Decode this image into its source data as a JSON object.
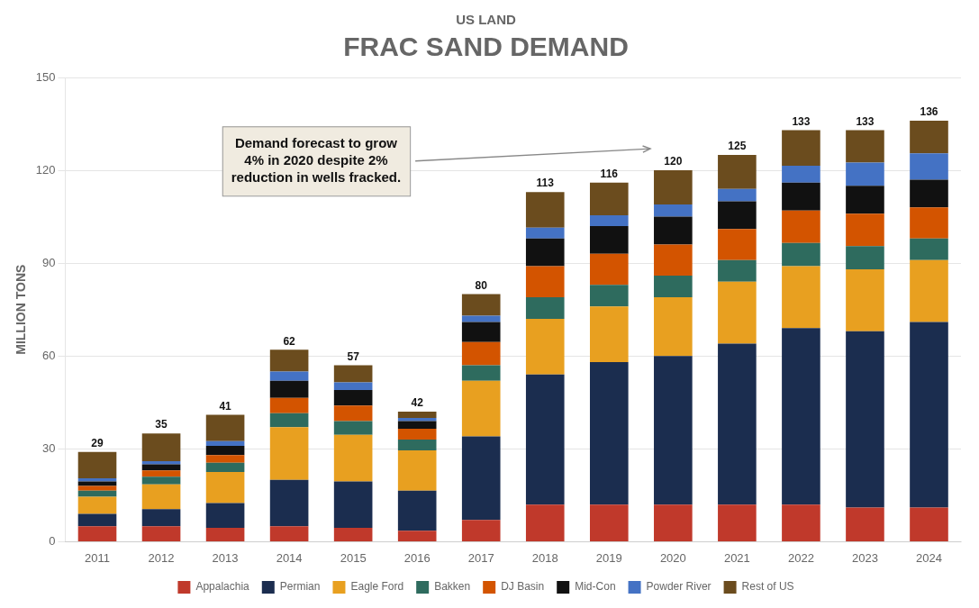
{
  "chart_data": {
    "type": "bar",
    "title": "FRAC SAND DEMAND",
    "subtitle": "US LAND",
    "y_label": "MILLION TONS",
    "categories": [
      "2011",
      "2012",
      "2013",
      "2014",
      "2015",
      "2016",
      "2017",
      "2018",
      "2019",
      "2020",
      "2021",
      "2022",
      "2023",
      "2024"
    ],
    "series": [
      {
        "name": "Appalachia",
        "color": "#c0392b",
        "values": [
          5.0,
          5.0,
          4.5,
          5.0,
          4.5,
          3.5,
          7.0,
          12.0,
          12.0,
          12.0,
          12.0,
          12.0,
          11.0,
          11.0
        ]
      },
      {
        "name": "Permian",
        "color": "#1b2d4f",
        "values": [
          4.0,
          5.5,
          8.0,
          15.0,
          15.0,
          13.0,
          27.0,
          42.0,
          46.0,
          48.0,
          52.0,
          57.0,
          57.0,
          60.0
        ]
      },
      {
        "name": "Eagle Ford",
        "color": "#e8a020",
        "values": [
          5.5,
          8.0,
          10.0,
          17.0,
          15.0,
          13.0,
          18.0,
          18.0,
          18.0,
          19.0,
          20.0,
          20.0,
          20.0,
          20.0
        ]
      },
      {
        "name": "Bakken",
        "color": "#2e6b5e",
        "values": [
          2.0,
          2.5,
          3.0,
          4.5,
          4.5,
          3.5,
          5.0,
          7.0,
          7.0,
          7.0,
          7.0,
          7.5,
          7.5,
          7.0
        ]
      },
      {
        "name": "DJ Basin",
        "color": "#d35400",
        "values": [
          1.5,
          2.0,
          2.5,
          5.0,
          5.0,
          3.5,
          7.5,
          10.0,
          10.0,
          10.0,
          10.0,
          10.5,
          10.5,
          10.0
        ]
      },
      {
        "name": "Mid-Con",
        "color": "#111111",
        "values": [
          1.5,
          2.0,
          3.0,
          5.5,
          5.0,
          2.5,
          6.5,
          9.0,
          9.0,
          9.0,
          9.0,
          9.0,
          9.0,
          9.0
        ]
      },
      {
        "name": "Powder River",
        "color": "#4472c4",
        "values": [
          1.0,
          1.0,
          1.5,
          3.0,
          2.5,
          1.0,
          2.0,
          3.5,
          3.5,
          4.0,
          4.0,
          5.5,
          7.5,
          8.5
        ]
      },
      {
        "name": "Rest of US",
        "color": "#6b4c1e",
        "values": [
          8.5,
          9.0,
          8.5,
          7.0,
          5.5,
          2.0,
          7.0,
          11.5,
          10.5,
          11.0,
          11.0,
          11.5,
          10.5,
          10.5
        ]
      }
    ],
    "totals": [
      29,
      35,
      41,
      62,
      57,
      42,
      80,
      113,
      116,
      120,
      125,
      133,
      133,
      136
    ],
    "annotations": [
      {
        "text": "Demand forecast to grow\n4% in 2020 despite 2%\nreduction in wells fracked.",
        "x": "2020"
      }
    ],
    "stacked": true,
    "ylim": [
      0,
      150
    ],
    "yticks": [
      0,
      30,
      60,
      90,
      120,
      150
    ],
    "grid": "y",
    "legend": "bottom"
  }
}
